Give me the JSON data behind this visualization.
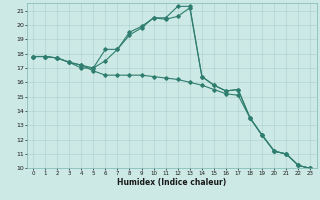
{
  "title": "",
  "xlabel": "Humidex (Indice chaleur)",
  "xlim": [
    -0.5,
    23.5
  ],
  "ylim": [
    10,
    21.5
  ],
  "yticks": [
    10,
    11,
    12,
    13,
    14,
    15,
    16,
    17,
    18,
    19,
    20,
    21
  ],
  "xticks": [
    0,
    1,
    2,
    3,
    4,
    5,
    6,
    7,
    8,
    9,
    10,
    11,
    12,
    13,
    14,
    15,
    16,
    17,
    18,
    19,
    20,
    21,
    22,
    23
  ],
  "line_color": "#2e7d6e",
  "bg_color": "#cce9e5",
  "grid_color": "#aacfcb",
  "line1_x": [
    0,
    1,
    2,
    3,
    4,
    5,
    6,
    7,
    8,
    9,
    10,
    11,
    12,
    13,
    14,
    15,
    16,
    17,
    18,
    19,
    20,
    21,
    22,
    23
  ],
  "line1_y": [
    17.8,
    17.8,
    17.7,
    17.4,
    17.2,
    16.8,
    16.5,
    16.5,
    16.5,
    16.5,
    16.4,
    16.3,
    16.2,
    16.0,
    15.8,
    15.5,
    15.2,
    15.1,
    13.5,
    12.3,
    11.2,
    11.0,
    10.2,
    10.0
  ],
  "line2_x": [
    0,
    1,
    2,
    3,
    4,
    5,
    6,
    7,
    8,
    9,
    10,
    11,
    12,
    13,
    14,
    15,
    16,
    17,
    18,
    19,
    20,
    21,
    22,
    23
  ],
  "line2_y": [
    17.8,
    17.8,
    17.7,
    17.4,
    17.2,
    17.0,
    17.5,
    18.3,
    19.3,
    19.8,
    20.5,
    20.4,
    20.6,
    21.2,
    16.4,
    15.8,
    15.4,
    15.5,
    13.5,
    12.3,
    11.2,
    11.0,
    10.2,
    10.0
  ],
  "line3_x": [
    0,
    1,
    2,
    3,
    4,
    5,
    6,
    7,
    8,
    9,
    10,
    11,
    12,
    13,
    14,
    15,
    16,
    17,
    18,
    19,
    20,
    21,
    22,
    23
  ],
  "line3_y": [
    17.8,
    17.8,
    17.7,
    17.4,
    17.0,
    17.0,
    18.3,
    18.3,
    19.5,
    19.9,
    20.5,
    20.5,
    21.3,
    21.3,
    16.4,
    15.8,
    15.4,
    15.5,
    13.5,
    12.3,
    11.2,
    11.0,
    10.2,
    10.0
  ]
}
